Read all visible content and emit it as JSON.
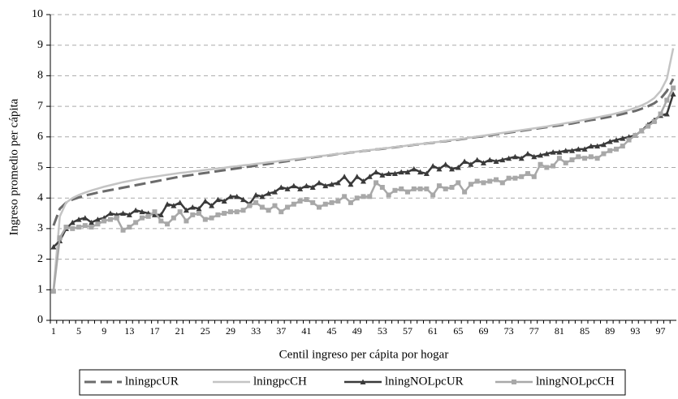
{
  "chart_data": {
    "type": "line",
    "x_label": "Centil ingreso per cápita por hogar",
    "y_label": "Ingreso promedio per cápita",
    "categories": [
      1,
      null,
      null,
      null,
      5,
      null,
      null,
      null,
      9,
      null,
      null,
      null,
      13,
      null,
      null,
      null,
      17,
      null,
      null,
      null,
      21,
      null,
      null,
      null,
      25,
      null,
      null,
      null,
      29,
      null,
      null,
      null,
      33,
      null,
      null,
      null,
      37,
      null,
      null,
      null,
      41,
      null,
      null,
      null,
      45,
      null,
      null,
      null,
      49,
      null,
      null,
      null,
      53,
      null,
      null,
      null,
      57,
      null,
      null,
      null,
      61,
      null,
      null,
      null,
      65,
      null,
      null,
      null,
      69,
      null,
      null,
      null,
      73,
      null,
      null,
      null,
      77,
      null,
      null,
      null,
      81,
      null,
      null,
      null,
      85,
      null,
      null,
      null,
      89,
      null,
      null,
      null,
      93,
      null,
      null,
      null,
      97,
      null,
      null
    ],
    "ylim": [
      0,
      10
    ],
    "yticks": [
      0,
      1,
      2,
      3,
      4,
      5,
      6,
      7,
      8,
      9,
      10
    ],
    "grid": true,
    "series": [
      {
        "name": "lningpcUR",
        "color": "#6b6b6b",
        "line_style": "dashed",
        "values": [
          3.1,
          3.65,
          3.85,
          3.95,
          4.02,
          4.08,
          4.13,
          4.18,
          4.22,
          4.26,
          4.3,
          4.34,
          4.38,
          4.42,
          4.46,
          4.5,
          4.54,
          4.58,
          4.62,
          4.66,
          4.7,
          4.73,
          4.76,
          4.79,
          4.82,
          4.85,
          4.88,
          4.91,
          4.94,
          4.97,
          5.0,
          5.03,
          5.06,
          5.09,
          5.12,
          5.15,
          5.18,
          5.21,
          5.24,
          5.27,
          5.3,
          5.33,
          5.36,
          5.38,
          5.41,
          5.44,
          5.46,
          5.49,
          5.51,
          5.54,
          5.56,
          5.59,
          5.61,
          5.64,
          5.66,
          5.69,
          5.71,
          5.74,
          5.76,
          5.79,
          5.81,
          5.84,
          5.86,
          5.89,
          5.91,
          5.94,
          5.97,
          6.0,
          6.02,
          6.05,
          6.08,
          6.11,
          6.14,
          6.17,
          6.2,
          6.23,
          6.26,
          6.29,
          6.32,
          6.35,
          6.38,
          6.41,
          6.44,
          6.48,
          6.51,
          6.55,
          6.58,
          6.62,
          6.66,
          6.7,
          6.75,
          6.8,
          6.85,
          6.92,
          7.0,
          7.1,
          7.25,
          7.5,
          7.9
        ]
      },
      {
        "name": "lningpcCH",
        "color": "#c4c4c4",
        "line_style": "solid",
        "values": [
          1.0,
          3.4,
          3.85,
          4.0,
          4.1,
          4.18,
          4.25,
          4.31,
          4.37,
          4.42,
          4.47,
          4.52,
          4.56,
          4.6,
          4.64,
          4.67,
          4.7,
          4.73,
          4.76,
          4.79,
          4.82,
          4.84,
          4.87,
          4.89,
          4.92,
          4.94,
          4.97,
          4.99,
          5.02,
          5.04,
          5.07,
          5.09,
          5.12,
          5.14,
          5.17,
          5.19,
          5.22,
          5.24,
          5.27,
          5.29,
          5.32,
          5.34,
          5.37,
          5.39,
          5.42,
          5.44,
          5.47,
          5.49,
          5.52,
          5.54,
          5.57,
          5.59,
          5.62,
          5.64,
          5.67,
          5.69,
          5.72,
          5.74,
          5.77,
          5.79,
          5.82,
          5.84,
          5.87,
          5.9,
          5.92,
          5.95,
          5.98,
          6.01,
          6.04,
          6.07,
          6.1,
          6.13,
          6.16,
          6.19,
          6.22,
          6.25,
          6.28,
          6.31,
          6.34,
          6.38,
          6.41,
          6.45,
          6.48,
          6.52,
          6.56,
          6.6,
          6.64,
          6.68,
          6.72,
          6.77,
          6.82,
          6.88,
          6.95,
          7.03,
          7.13,
          7.27,
          7.5,
          7.9,
          8.9
        ]
      },
      {
        "name": "lningNOLpcUR",
        "color": "#3a3a3a",
        "line_style": "solid",
        "marker": "triangle",
        "values": [
          2.4,
          2.6,
          3.0,
          3.2,
          3.3,
          3.35,
          3.2,
          3.3,
          3.35,
          3.5,
          3.45,
          3.5,
          3.45,
          3.6,
          3.55,
          3.5,
          3.45,
          3.45,
          3.8,
          3.75,
          3.85,
          3.6,
          3.7,
          3.65,
          3.9,
          3.75,
          3.95,
          3.9,
          4.05,
          4.05,
          3.95,
          3.8,
          4.1,
          4.05,
          4.15,
          4.2,
          4.35,
          4.3,
          4.4,
          4.3,
          4.4,
          4.35,
          4.5,
          4.4,
          4.45,
          4.5,
          4.7,
          4.45,
          4.7,
          4.55,
          4.7,
          4.85,
          4.75,
          4.8,
          4.8,
          4.85,
          4.85,
          4.95,
          4.85,
          4.8,
          5.05,
          4.95,
          5.1,
          4.95,
          5.0,
          5.2,
          5.1,
          5.25,
          5.15,
          5.25,
          5.2,
          5.25,
          5.3,
          5.35,
          5.3,
          5.45,
          5.35,
          5.4,
          5.45,
          5.5,
          5.5,
          5.55,
          5.55,
          5.6,
          5.6,
          5.7,
          5.7,
          5.75,
          5.85,
          5.9,
          5.95,
          6.0,
          6.05,
          6.2,
          6.4,
          6.55,
          6.7,
          6.75,
          7.4
        ]
      },
      {
        "name": "lningNOLpcCH",
        "color": "#a8a8a8",
        "line_style": "solid",
        "marker": "square",
        "values": [
          0.95,
          2.7,
          3.05,
          3.0,
          3.05,
          3.1,
          3.05,
          3.15,
          3.25,
          3.3,
          3.35,
          2.95,
          3.05,
          3.2,
          3.35,
          3.4,
          3.55,
          3.25,
          3.15,
          3.35,
          3.55,
          3.25,
          3.45,
          3.5,
          3.3,
          3.35,
          3.45,
          3.5,
          3.55,
          3.55,
          3.6,
          3.75,
          3.85,
          3.7,
          3.6,
          3.75,
          3.55,
          3.7,
          3.8,
          3.9,
          3.95,
          3.85,
          3.7,
          3.8,
          3.85,
          3.9,
          4.05,
          3.85,
          4.0,
          4.05,
          4.05,
          4.5,
          4.35,
          4.1,
          4.25,
          4.3,
          4.2,
          4.3,
          4.3,
          4.3,
          4.1,
          4.4,
          4.3,
          4.35,
          4.5,
          4.2,
          4.45,
          4.55,
          4.5,
          4.55,
          4.6,
          4.5,
          4.65,
          4.65,
          4.7,
          4.8,
          4.7,
          5.1,
          5.0,
          5.05,
          5.3,
          5.15,
          5.25,
          5.35,
          5.3,
          5.35,
          5.3,
          5.45,
          5.55,
          5.6,
          5.7,
          5.9,
          6.05,
          6.2,
          6.35,
          6.5,
          6.75,
          7.2,
          7.6
        ]
      }
    ]
  }
}
